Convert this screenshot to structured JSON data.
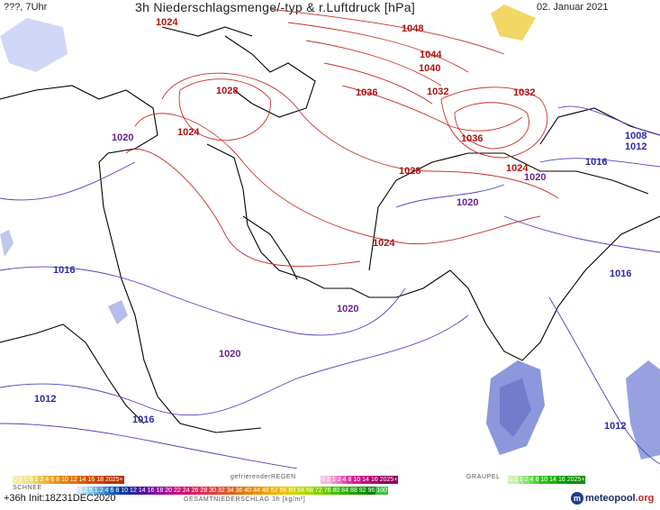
{
  "header": {
    "left": "???, 7Uhr",
    "title": "3h Niederschlagsmenge/-typ & r.Luftdruck [hPa]",
    "date": "02. Januar 2021"
  },
  "isobar_labels": [
    {
      "text": "1048",
      "kind": "high"
    },
    {
      "text": "1044",
      "kind": "high"
    },
    {
      "text": "1040",
      "kind": "high"
    },
    {
      "text": "1036",
      "kind": "high"
    },
    {
      "text": "1032",
      "kind": "high"
    },
    {
      "text": "1032",
      "kind": "high"
    },
    {
      "text": "1036",
      "kind": "high"
    },
    {
      "text": "1028",
      "kind": "high"
    },
    {
      "text": "1028",
      "kind": "high"
    },
    {
      "text": "1024",
      "kind": "high"
    },
    {
      "text": "1024",
      "kind": "high"
    },
    {
      "text": "1024",
      "kind": "high"
    },
    {
      "text": "1024",
      "kind": "high"
    },
    {
      "text": "1020",
      "kind": "mid"
    },
    {
      "text": "1020",
      "kind": "mid"
    },
    {
      "text": "1020",
      "kind": "mid"
    },
    {
      "text": "1020",
      "kind": "mid"
    },
    {
      "text": "1020",
      "kind": "mid"
    },
    {
      "text": "1016",
      "kind": "low"
    },
    {
      "text": "1016",
      "kind": "low"
    },
    {
      "text": "1016",
      "kind": "low"
    },
    {
      "text": "1016",
      "kind": "low"
    },
    {
      "text": "1012",
      "kind": "low"
    },
    {
      "text": "1012",
      "kind": "low"
    },
    {
      "text": "1012",
      "kind": "low"
    },
    {
      "text": "1008",
      "kind": "low"
    }
  ],
  "legend": {
    "schnee_label": "SCHNEE",
    "schnee_values": [
      "0.1",
      "0.5",
      "1",
      "2",
      "4",
      "6",
      "8",
      "10",
      "12",
      "14",
      "16",
      "18",
      "2025+"
    ],
    "regen_label": "gefrierenderREGEN",
    "regen_values": [
      "0.1",
      "1",
      "2",
      "4",
      "8",
      "10",
      "14",
      "16",
      "2025+"
    ],
    "graupel_label": "GRAUPEL",
    "graupel_values": [
      "0.1",
      "1",
      "2",
      "4",
      "8",
      "10",
      "14",
      "16",
      "2025+"
    ],
    "gesamt_values": [
      "1",
      "2",
      "5",
      "1",
      "2",
      "4",
      "6",
      "8",
      "10",
      "12",
      "14",
      "16",
      "18",
      "20",
      "22",
      "24",
      "26",
      "28",
      "30",
      "32",
      "34",
      "36",
      "40",
      "44",
      "48",
      "52",
      "56",
      "60",
      "64",
      "68",
      "72",
      "76",
      "80",
      "84",
      "88",
      "92",
      "96",
      "100"
    ],
    "gesamt_label": "GESAMTNIEDERSCHLAG 3h [kg/m²]"
  },
  "footer": {
    "run": "+36h Init:18Z31DEC2020",
    "brand": "meteopool",
    "brand_tld": ".org"
  },
  "colors": {
    "high_isobar": "#c8302c",
    "low_isobar": "#4848c0",
    "coast": "#000000",
    "snow": "#d8e0ff",
    "rain": "#7080d8"
  }
}
